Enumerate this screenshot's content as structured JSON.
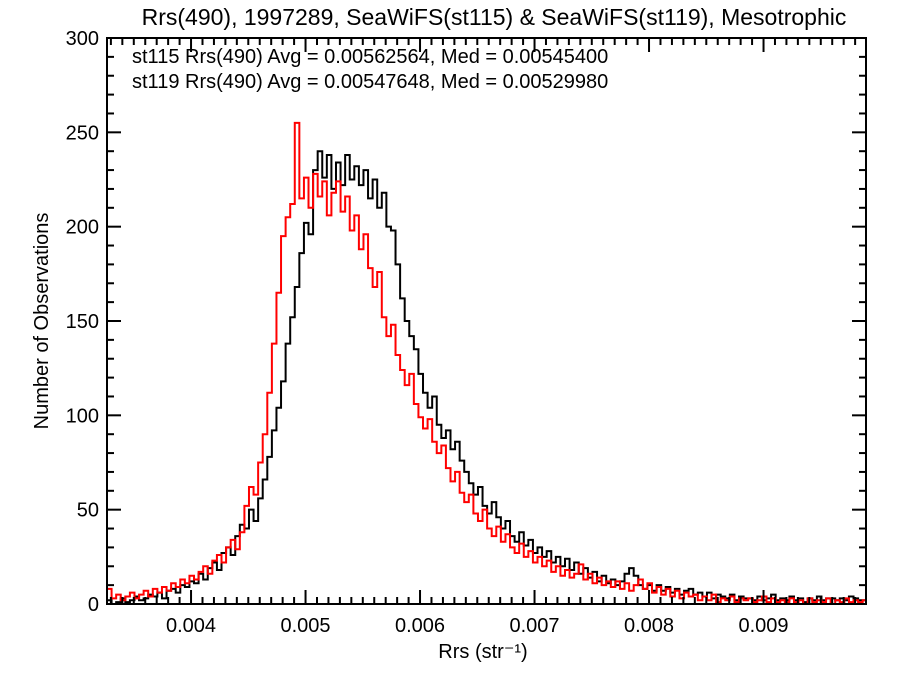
{
  "chart_data": {
    "type": "line",
    "subtype": "step-histogram",
    "title": "Rrs(490), 1997289, SeaWiFS(st115) & SeaWiFS(st119), Mesotrophic",
    "xlabel": "Rrs (str⁻¹)",
    "ylabel": "Number of Observations",
    "xlim": [
      0.003266,
      0.009895
    ],
    "ylim": [
      0,
      300
    ],
    "grid": false,
    "legend_position": "top-left-inside",
    "x_tick_values": [
      0.004,
      0.005,
      0.006,
      0.007,
      0.008,
      0.009
    ],
    "x_tick_labels": [
      "0.004",
      "0.005",
      "0.006",
      "0.007",
      "0.008",
      "0.009"
    ],
    "x_minor_step": 0.0001,
    "y_tick_values": [
      0,
      50,
      100,
      150,
      200,
      250,
      300
    ],
    "y_tick_labels": [
      "0",
      "50",
      "100",
      "150",
      "200",
      "250",
      "300"
    ],
    "y_minor_step": 10,
    "bin_start": 0.003266,
    "bin_width": 4e-05,
    "series": [
      {
        "name": "st115",
        "color": "#000000",
        "legend": "st115 Rrs(490) Avg = 0.00562564, Med = 0.00545400",
        "avg": 0.00562564,
        "med": 0.005454,
        "counts": [
          2,
          0,
          1,
          3,
          1,
          2,
          4,
          2,
          3,
          5,
          4,
          6,
          3,
          7,
          8,
          6,
          10,
          9,
          12,
          11,
          16,
          13,
          19,
          22,
          18,
          27,
          30,
          26,
          36,
          42,
          40,
          50,
          44,
          56,
          66,
          78,
          92,
          104,
          118,
          138,
          152,
          168,
          186,
          202,
          196,
          230,
          240,
          226,
          238,
          220,
          234,
          222,
          238,
          225,
          232,
          222,
          230,
          215,
          225,
          210,
          218,
          200,
          198,
          180,
          162,
          150,
          142,
          135,
          122,
          112,
          104,
          110,
          95,
          88,
          92,
          82,
          86,
          76,
          70,
          64,
          58,
          62,
          52,
          48,
          54,
          46,
          40,
          44,
          36,
          33,
          38,
          31,
          34,
          27,
          30,
          25,
          28,
          22,
          25,
          20,
          24,
          18,
          22,
          16,
          19,
          14,
          17,
          12,
          15,
          11,
          13,
          10,
          12,
          16,
          19,
          15,
          10,
          8,
          10,
          7,
          10,
          7,
          9,
          6,
          8,
          5,
          7,
          8,
          5,
          6,
          4,
          6,
          3,
          5,
          4,
          3,
          5,
          2,
          4,
          3,
          3,
          2,
          4,
          2,
          3,
          5,
          2,
          3,
          2,
          4,
          2,
          3,
          1,
          3,
          2,
          4,
          2,
          3,
          3,
          2,
          3,
          2,
          4,
          3,
          2,
          2
        ]
      },
      {
        "name": "st119",
        "color": "#ff0000",
        "legend": "st119 Rrs(490) Avg = 0.00547648, Med = 0.00529980",
        "avg": 0.00547648,
        "med": 0.0052998,
        "counts": [
          8,
          3,
          5,
          2,
          4,
          6,
          3,
          5,
          7,
          4,
          8,
          6,
          9,
          7,
          11,
          9,
          13,
          11,
          15,
          13,
          17,
          20,
          16,
          23,
          26,
          22,
          30,
          34,
          29,
          38,
          52,
          62,
          58,
          75,
          90,
          112,
          138,
          165,
          195,
          205,
          212,
          255,
          215,
          226,
          210,
          228,
          216,
          224,
          206,
          218,
          224,
          208,
          216,
          198,
          206,
          188,
          196,
          178,
          168,
          176,
          152,
          142,
          148,
          132,
          124,
          116,
          122,
          106,
          99,
          93,
          98,
          86,
          80,
          84,
          72,
          65,
          70,
          59,
          54,
          58,
          48,
          44,
          50,
          40,
          36,
          41,
          33,
          37,
          30,
          27,
          32,
          25,
          28,
          22,
          25,
          20,
          23,
          17,
          20,
          15,
          18,
          14,
          16,
          21,
          13,
          16,
          11,
          14,
          10,
          12,
          9,
          12,
          8,
          11,
          7,
          10,
          13,
          8,
          11,
          6,
          9,
          5,
          8,
          4,
          7,
          3,
          6,
          4,
          5,
          2,
          4,
          2,
          5,
          1,
          3,
          2,
          4,
          1,
          3,
          2,
          3,
          1,
          2,
          4,
          1,
          3,
          1,
          2,
          1,
          3,
          1,
          2,
          0,
          3,
          1,
          2,
          1,
          3,
          0,
          2,
          1,
          3,
          1,
          2,
          1,
          2
        ]
      }
    ]
  }
}
